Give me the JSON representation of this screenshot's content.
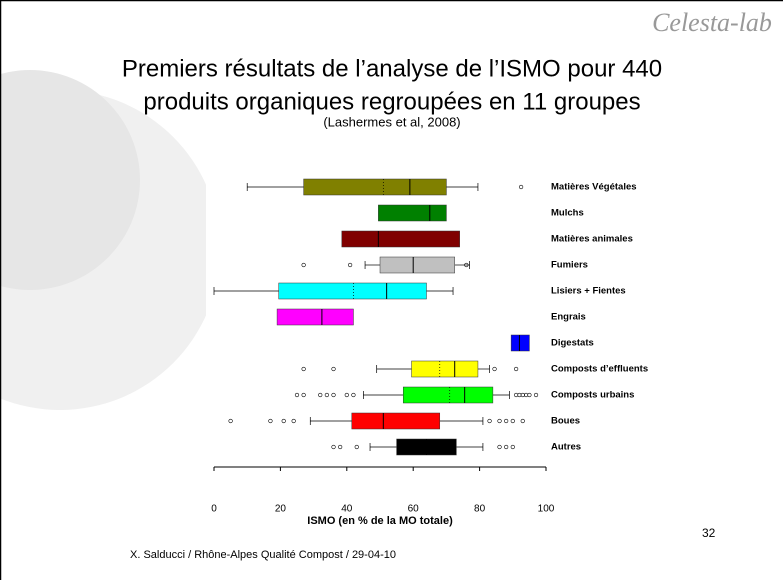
{
  "logo": "Celesta-lab",
  "chart_data": {
    "type": "box",
    "title": [
      "Premiers résultats de l’analyse de l’ISMO pour 440",
      "produits organiques regroupées en 11 groupes"
    ],
    "subtitle": "(Lashermes et al, 2008)",
    "xlabel": "ISMO (en % de la MO totale)",
    "xlim": [
      0,
      100
    ],
    "xticks": [
      0,
      20,
      40,
      60,
      80,
      100
    ],
    "boxes": [
      {
        "name": "Matières Végétales",
        "color": "#808000",
        "low": 10,
        "q1": 27,
        "median": 59,
        "q3": 70,
        "high": 79.5,
        "mean": 51,
        "outliers": [
          92.5
        ]
      },
      {
        "name": "Mulchs",
        "color": "#008000",
        "q1": 49.5,
        "median": 65,
        "q3": 70
      },
      {
        "name": "Matières animales",
        "color": "#800000",
        "q1": 38.5,
        "median": 49.5,
        "q3": 74
      },
      {
        "name": "Fumiers",
        "color": "#c0c0c0",
        "low": 45.5,
        "q1": 50,
        "median": 60,
        "q3": 72.5,
        "high": 77,
        "outliers": [
          27,
          41,
          76
        ]
      },
      {
        "name": "Lisiers + Fientes",
        "color": "#00ffff",
        "low": 0,
        "q1": 19.5,
        "median": 52,
        "q3": 64,
        "high": 72,
        "mean": 42
      },
      {
        "name": "Engrais",
        "color": "#ff00ff",
        "q1": 19,
        "median": 32.5,
        "q3": 42
      },
      {
        "name": "Digestats",
        "color": "#0000ff",
        "q1": 89.5,
        "median": 92,
        "q3": 95
      },
      {
        "name": "Composts d’effluents",
        "color": "#ffff00",
        "low": 49,
        "q1": 59.5,
        "median": 72.5,
        "q3": 79.5,
        "high": 83,
        "mean": 68,
        "outliers": [
          27,
          36,
          84.5,
          91
        ]
      },
      {
        "name": "Composts urbains",
        "color": "#00ff00",
        "low": 45,
        "q1": 57,
        "median": 75.5,
        "q3": 84,
        "high": 89,
        "mean": 71,
        "outliers": [
          25,
          27,
          32,
          34,
          36,
          40,
          42,
          91,
          92,
          93,
          94,
          95,
          97
        ]
      },
      {
        "name": "Boues",
        "color": "#ff0000",
        "low": 29,
        "q1": 41.5,
        "median": 51,
        "q3": 68,
        "high": 81,
        "outliers": [
          5,
          17,
          21,
          24,
          83,
          86,
          88,
          90,
          93
        ]
      },
      {
        "name": "Autres",
        "color": "#000000",
        "low": 47,
        "q1": 55,
        "median": 64,
        "q3": 73,
        "high": 81,
        "outliers": [
          36,
          38,
          43,
          86,
          88,
          90
        ]
      }
    ]
  }
}
